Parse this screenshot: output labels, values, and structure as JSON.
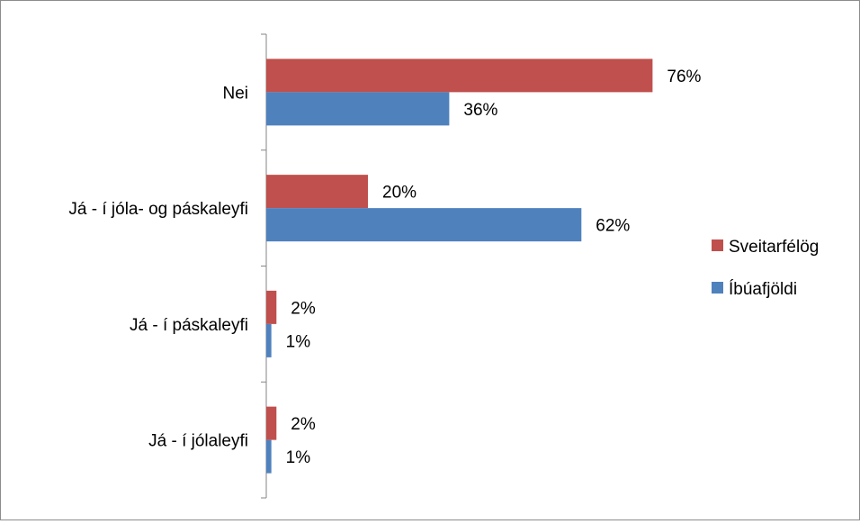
{
  "chart_data": {
    "type": "bar",
    "orientation": "horizontal",
    "categories": [
      "Nei",
      "Já - í jóla- og páskaleyfi",
      "Já -  í páskaleyfi",
      "Já -  í jólaleyfi"
    ],
    "series": [
      {
        "name": "Sveitarfélög",
        "color": "#c0504d",
        "values": [
          76,
          20,
          2,
          2
        ],
        "labels": [
          "76%",
          "20%",
          "2%",
          "2%"
        ]
      },
      {
        "name": "Íbúafjöldi",
        "color": "#4f81bd",
        "values": [
          36,
          62,
          1,
          1
        ],
        "labels": [
          "36%",
          "62%",
          "1%",
          "1%"
        ]
      }
    ],
    "value_unit": "%",
    "xlim": [
      0,
      100
    ],
    "grid": false,
    "legend_position": "right"
  }
}
